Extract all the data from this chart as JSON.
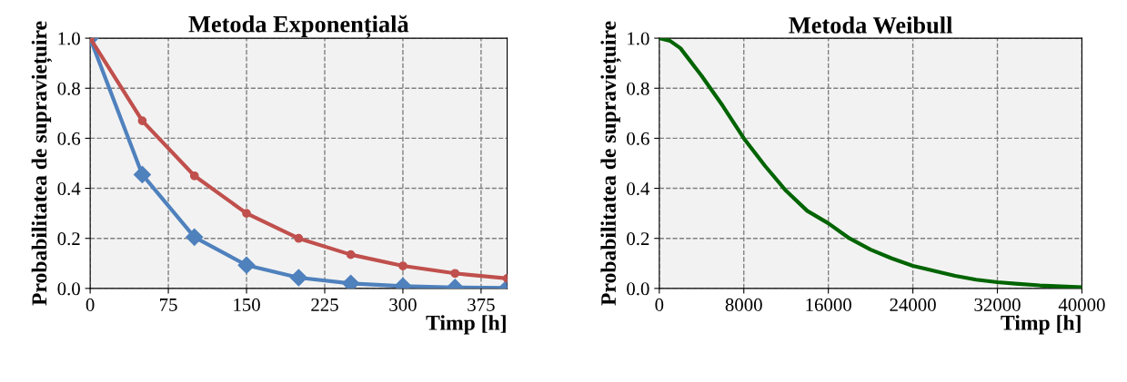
{
  "chart_data": [
    {
      "type": "line",
      "title": "Metoda Exponențială",
      "xlabel": "Timp [h]",
      "ylabel": "Probabilitatea de supraviețuire",
      "x": [
        0,
        50,
        100,
        150,
        200,
        250,
        300,
        350,
        400
      ],
      "series": [
        {
          "color": "#4f81bd",
          "marker": "diamond",
          "values": [
            1.0,
            0.455,
            0.205,
            0.093,
            0.043,
            0.02,
            0.009,
            0.004,
            0.002
          ]
        },
        {
          "color": "#c0504d",
          "marker": "circle",
          "values": [
            1.0,
            0.67,
            0.45,
            0.3,
            0.2,
            0.135,
            0.09,
            0.06,
            0.04
          ]
        }
      ],
      "xlim": [
        0,
        400
      ],
      "xticks": [
        0,
        75,
        150,
        225,
        300,
        375
      ],
      "ylim": [
        0,
        1.0
      ],
      "yticks": [
        {
          "value": 0,
          "label": "0.0"
        },
        {
          "value": 0.2,
          "label": "0.2"
        },
        {
          "value": 0.4,
          "label": "0.4"
        },
        {
          "value": 0.6,
          "label": "0.6"
        },
        {
          "value": 0.8,
          "label": "0.8"
        },
        {
          "value": 1.0,
          "label": "1.0"
        }
      ],
      "grid": true
    },
    {
      "type": "line",
      "title": "Metoda Weibull",
      "xlabel": "Timp [h]",
      "ylabel": "Probabilitatea de supraviețuire",
      "x": [
        0,
        1000,
        2000,
        4000,
        6000,
        8000,
        10000,
        12000,
        14000,
        16000,
        18000,
        20000,
        22000,
        24000,
        26000,
        28000,
        30000,
        32000,
        34000,
        36000,
        38000,
        40000
      ],
      "series": [
        {
          "color": "#006400",
          "marker": "none",
          "values": [
            1.0,
            0.99,
            0.96,
            0.85,
            0.73,
            0.6,
            0.49,
            0.39,
            0.31,
            0.26,
            0.2,
            0.155,
            0.12,
            0.09,
            0.07,
            0.05,
            0.035,
            0.025,
            0.018,
            0.012,
            0.008,
            0.005
          ]
        }
      ],
      "xlim": [
        0,
        40000
      ],
      "xticks": [
        0,
        8000,
        16000,
        24000,
        32000,
        40000
      ],
      "ylim": [
        0,
        1.0
      ],
      "yticks": [
        {
          "value": 0,
          "label": "0.0"
        },
        {
          "value": 0.2,
          "label": "0.2"
        },
        {
          "value": 0.4,
          "label": "0.4"
        },
        {
          "value": 0.6,
          "label": "0.6"
        },
        {
          "value": 0.8,
          "label": "0.8"
        },
        {
          "value": 1.0,
          "label": "1.0"
        }
      ],
      "grid": true
    }
  ]
}
